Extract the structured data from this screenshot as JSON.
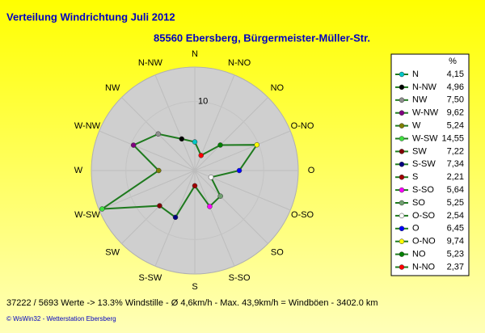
{
  "chart_data": {
    "type": "radar",
    "title": "Verteilung Windrichtung   Juli 2012",
    "subtitle": "85560 Ebersberg, Bürgermeister-Müller-Str.",
    "categories": [
      "N",
      "N-NW",
      "NW",
      "W-NW",
      "W",
      "W-SW",
      "SW",
      "S-SW",
      "S",
      "S-SO",
      "SO",
      "O-SO",
      "O",
      "O-NO",
      "NO",
      "N-NO"
    ],
    "direction": "counterclockwise",
    "values": [
      4.15,
      4.96,
      7.5,
      9.62,
      5.24,
      14.55,
      7.22,
      7.34,
      2.21,
      5.64,
      5.25,
      2.54,
      6.45,
      9.74,
      5.23,
      2.37
    ],
    "value_labels": [
      "4,15",
      "4,96",
      "7,50",
      "9,62",
      "5,24",
      "14,55",
      "7,22",
      "7,34",
      "2,21",
      "5,64",
      "5,25",
      "2,54",
      "6,45",
      "9,74",
      "5,23",
      "2,37"
    ],
    "colors": [
      "#00c8c8",
      "#000000",
      "#909090",
      "#800080",
      "#808000",
      "#40e040",
      "#800000",
      "#000080",
      "#a00000",
      "#ff00ff",
      "#70a070",
      "#ffffff",
      "#0000ff",
      "#ffff00",
      "#008000",
      "#ff0000"
    ],
    "line_color": "#1e7a1e",
    "rlim": [
      0,
      15
    ],
    "rticks": [
      10
    ],
    "legend_title": "%",
    "footer": "37222 / 5693 Werte  -> 13.3% Windstille  -  Ø 4,6km/h  -  Max. 43,9km/h = Windböen  -  3402.0 km",
    "credit": "© WsWin32  -  Wetterstation Ebersberg"
  }
}
